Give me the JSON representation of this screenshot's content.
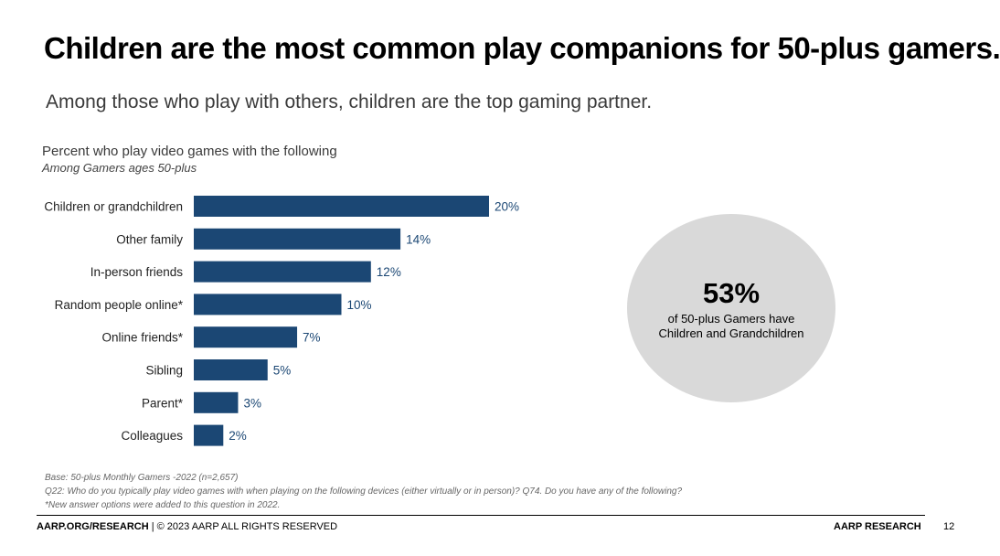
{
  "slide": {
    "title": "Children are the most common play companions for 50-plus gamers.",
    "subtitle": "Among those who play with others, children are the top gaming partner."
  },
  "chart_data": {
    "type": "bar",
    "orientation": "horizontal",
    "title": "Percent who play video games with the following",
    "subtitle": "Among Gamers ages 50-plus",
    "categories": [
      "Children or grandchildren",
      "Other family",
      "In-person friends",
      "Random people online*",
      "Online friends*",
      "Sibling",
      "Parent*",
      "Colleagues"
    ],
    "values": [
      20,
      14,
      12,
      10,
      7,
      5,
      3,
      2
    ],
    "value_labels": [
      "20%",
      "14%",
      "12%",
      "10%",
      "7%",
      "5%",
      "3%",
      "2%"
    ],
    "unit": "%",
    "xlim": [
      0,
      20
    ],
    "grid": false,
    "legend": "none",
    "bar_color": "#1b4774",
    "label_color": "#1b4774"
  },
  "callout": {
    "value": "53%",
    "text": "of 50-plus Gamers have Children and Grandchildren",
    "color": "#d9d9d9"
  },
  "footnotes": {
    "base": "Base: 50-plus Monthly Gamers -2022 (n=2,657)",
    "question": "Q22: Who do you typically play video games with when playing on the following devices (either virtually or in person)? Q74. Do you have any of the following?",
    "note": "*New answer options were added to this question in 2022."
  },
  "footer": {
    "brand": "AARP.ORG/RESEARCH",
    "copyright": " | © 2023 AARP ALL RIGHTS RESERVED",
    "right": "AARP RESEARCH",
    "page": "12"
  }
}
